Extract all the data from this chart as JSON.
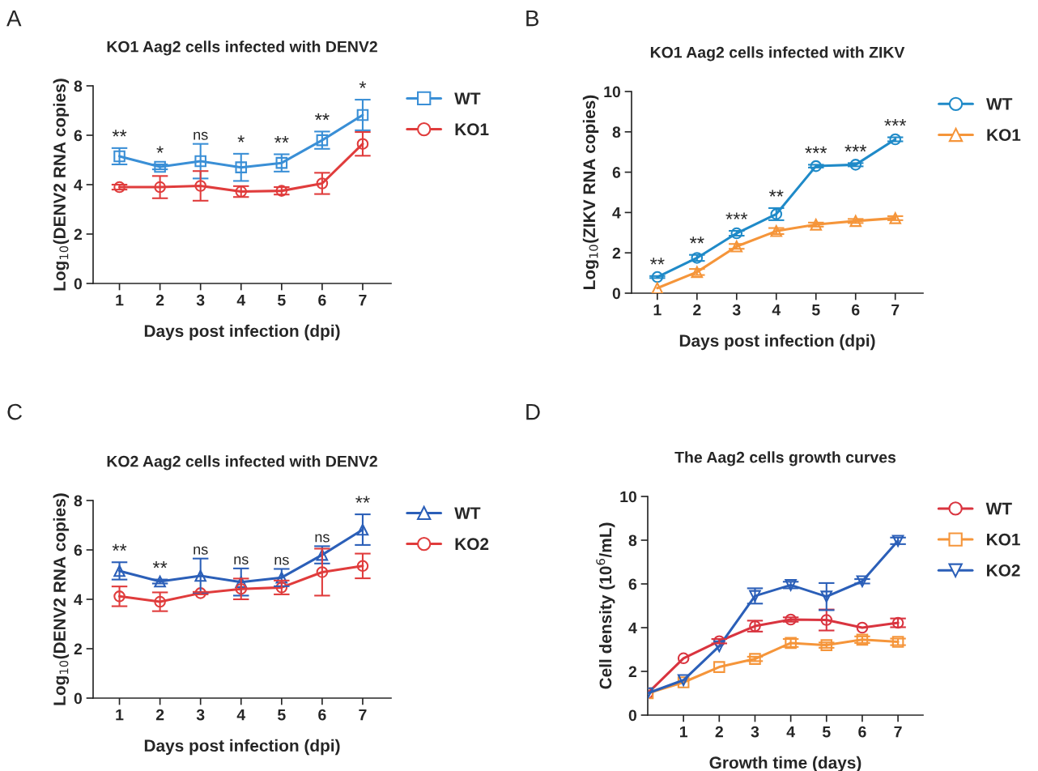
{
  "chart_data": [
    {
      "type": "line",
      "title": "KO1 Aag2 cells infected with DENV2",
      "xlabel": "Days post infection (dpi)",
      "ylabel": "Log$_{10}$(DENV2 RNA copies)",
      "x": [
        1,
        2,
        3,
        4,
        5,
        6,
        7
      ],
      "xlim": [
        0.35,
        7.7
      ],
      "xticks": [
        1,
        2,
        3,
        4,
        5,
        6,
        7
      ],
      "ylim": [
        0,
        8
      ],
      "yticks": [
        0,
        2,
        4,
        6,
        8
      ],
      "grid": false,
      "legend": "right",
      "series": [
        {
          "name": "WT",
          "color": "#3a8fd6",
          "marker": "square",
          "values": [
            5.15,
            4.72,
            4.95,
            4.7,
            4.88,
            5.8,
            6.82
          ],
          "errors": [
            0.33,
            0.1,
            0.7,
            0.55,
            0.35,
            0.35,
            0.62
          ]
        },
        {
          "name": "KO1",
          "color": "#e03c3c",
          "marker": "circle",
          "values": [
            3.9,
            3.9,
            3.95,
            3.72,
            3.75,
            4.05,
            5.65
          ],
          "errors": [
            0.1,
            0.45,
            0.6,
            0.22,
            0.15,
            0.43,
            0.48
          ]
        }
      ],
      "annotations": [
        "A",
        {
          "text": "**",
          "x": 1,
          "y": 5.48
        },
        {
          "text": "*",
          "x": 2,
          "y": 4.82
        },
        {
          "text": "ns",
          "x": 3,
          "y": 5.65
        },
        {
          "text": "*",
          "x": 4,
          "y": 5.25
        },
        {
          "text": "**",
          "x": 5,
          "y": 5.23
        },
        {
          "text": "**",
          "x": 6,
          "y": 6.15
        },
        {
          "text": "*",
          "x": 7,
          "y": 7.44
        }
      ]
    },
    {
      "type": "line",
      "title": "KO1 Aag2 cells infected with ZIKV",
      "xlabel": "Days post infection (dpi)",
      "ylabel": "Log$_{10}$(ZIKV RNA copies)",
      "x": [
        1,
        2,
        3,
        4,
        5,
        6,
        7
      ],
      "xlim": [
        0.35,
        7.7
      ],
      "xticks": [
        1,
        2,
        3,
        4,
        5,
        6,
        7
      ],
      "ylim": [
        0,
        10
      ],
      "yticks": [
        0,
        2,
        4,
        6,
        8,
        10
      ],
      "grid": false,
      "legend": "right",
      "series": [
        {
          "name": "WT",
          "color": "#1f8ac8",
          "marker": "circle",
          "values": [
            0.8,
            1.75,
            2.97,
            3.92,
            6.3,
            6.37,
            7.63
          ],
          "errors": [
            0.05,
            0.15,
            0.12,
            0.3,
            0.07,
            0.08,
            0.1
          ]
        },
        {
          "name": "KO1",
          "color": "#f5953a",
          "marker": "triangle",
          "values": [
            0.25,
            1.05,
            2.32,
            3.08,
            3.4,
            3.58,
            3.72
          ],
          "errors": [
            null,
            0.15,
            0.12,
            0.15,
            0.1,
            0.1,
            0.1
          ]
        }
      ],
      "annotations": [
        "B",
        {
          "text": "**",
          "x": 1,
          "y": 0.85
        },
        {
          "text": "**",
          "x": 2,
          "y": 1.9
        },
        {
          "text": "***",
          "x": 3,
          "y": 3.09
        },
        {
          "text": "**",
          "x": 4,
          "y": 4.22
        },
        {
          "text": "***",
          "x": 5,
          "y": 6.37
        },
        {
          "text": "***",
          "x": 6,
          "y": 6.45
        },
        {
          "text": "***",
          "x": 7,
          "y": 7.73
        }
      ]
    },
    {
      "type": "line",
      "title": "KO2 Aag2 cells infected with DENV2",
      "xlabel": "Days post infection (dpi)",
      "ylabel": "Log$_{10}$(DENV2 RNA copies)",
      "x": [
        1,
        2,
        3,
        4,
        5,
        6,
        7
      ],
      "xlim": [
        0.35,
        7.7
      ],
      "xticks": [
        1,
        2,
        3,
        4,
        5,
        6,
        7
      ],
      "ylim": [
        0,
        8
      ],
      "yticks": [
        0,
        2,
        4,
        6,
        8
      ],
      "grid": false,
      "legend": "right",
      "series": [
        {
          "name": "WT",
          "color": "#2b5fb8",
          "marker": "triangle",
          "values": [
            5.15,
            4.72,
            4.95,
            4.7,
            4.88,
            5.8,
            6.82
          ],
          "errors": [
            0.35,
            0.08,
            0.7,
            0.55,
            0.35,
            0.35,
            0.62
          ]
        },
        {
          "name": "KO2",
          "color": "#e03c3c",
          "marker": "circle",
          "values": [
            4.12,
            3.9,
            4.25,
            4.42,
            4.48,
            5.1,
            5.35
          ],
          "errors": [
            0.4,
            0.38,
            0.05,
            0.42,
            0.28,
            0.95,
            0.5
          ]
        }
      ],
      "annotations": [
        "C",
        {
          "text": "**",
          "x": 1,
          "y": 5.5
        },
        {
          "text": "**",
          "x": 2,
          "y": 4.8
        },
        {
          "text": "ns",
          "x": 3,
          "y": 5.65
        },
        {
          "text": "ns",
          "x": 4,
          "y": 5.25
        },
        {
          "text": "ns",
          "x": 5,
          "y": 5.23
        },
        {
          "text": "ns",
          "x": 6,
          "y": 6.15
        },
        {
          "text": "**",
          "x": 7,
          "y": 7.44
        }
      ]
    },
    {
      "type": "line",
      "title": "The Aag2 cells growth curves",
      "xlabel": "Growth time (days)",
      "ylabel": "Cell density (10$^{6}$/mL)",
      "x": [
        0,
        1,
        2,
        3,
        4,
        5,
        6,
        7
      ],
      "xlim": [
        0,
        7.7
      ],
      "xticks": [
        1,
        2,
        3,
        4,
        5,
        6,
        7
      ],
      "ylim": [
        0,
        10
      ],
      "yticks": [
        0,
        2,
        4,
        6,
        8,
        10
      ],
      "grid": false,
      "legend": "right",
      "series": [
        {
          "name": "WT",
          "color": "#d9343f",
          "marker": "circle",
          "values": [
            1.0,
            2.6,
            3.38,
            4.07,
            4.37,
            4.35,
            4.0,
            4.22
          ],
          "errors": [
            null,
            null,
            0.1,
            0.25,
            0.1,
            0.48,
            null,
            0.2
          ]
        },
        {
          "name": "KO1",
          "color": "#f5953a",
          "marker": "square",
          "values": [
            1.0,
            1.5,
            2.2,
            2.57,
            3.3,
            3.2,
            3.45,
            3.35
          ],
          "errors": [
            null,
            null,
            null,
            0.1,
            0.18,
            0.12,
            0.15,
            0.15
          ]
        },
        {
          "name": "KO2",
          "color": "#2b5fb8",
          "marker": "triangle_down",
          "values": [
            1.0,
            1.6,
            3.15,
            5.45,
            5.95,
            5.42,
            6.12,
            7.97
          ],
          "errors": [
            null,
            null,
            null,
            0.35,
            0.15,
            0.62,
            0.1,
            0.15
          ]
        }
      ],
      "annotations": [
        "D"
      ]
    }
  ]
}
